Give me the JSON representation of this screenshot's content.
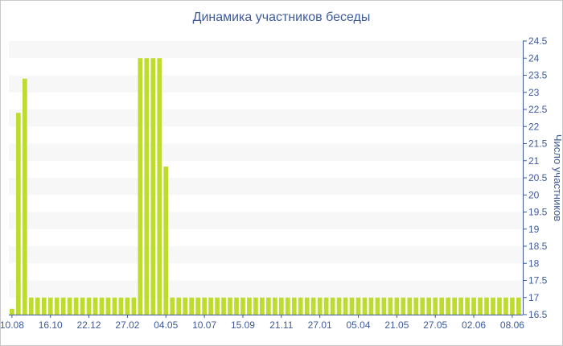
{
  "chart_data": {
    "type": "bar",
    "title": "Динамика участников беседы",
    "xlabel": "",
    "ylabel": "Число участников",
    "ylim": [
      16.5,
      24.5
    ],
    "y_ticks": [
      16.5,
      17,
      17.5,
      18,
      18.5,
      19,
      19.5,
      20,
      20.5,
      21,
      21.5,
      22,
      22.5,
      23,
      23.5,
      24,
      24.5
    ],
    "y_axis_position": "right",
    "grid": "horizontal bands",
    "x_tick_labels": [
      "10.08",
      "16.10",
      "22.12",
      "27.02",
      "04.05",
      "10.07",
      "15.09",
      "21.11",
      "27.01",
      "05.04",
      "21.05",
      "27.05",
      "02.06",
      "08.06"
    ],
    "x_tick_bar_index": [
      0,
      6,
      12,
      18,
      24,
      30,
      36,
      42,
      48,
      54,
      60,
      66,
      72,
      78
    ],
    "bar_color": "#bedc30",
    "values": [
      16.67,
      22.4,
      23.4,
      17,
      17,
      17,
      17,
      17,
      17,
      17,
      17,
      17,
      17,
      17,
      17,
      17,
      17,
      17,
      17,
      17,
      24,
      24,
      24,
      24,
      20.83,
      17,
      17,
      17,
      17,
      17,
      17,
      17,
      17,
      17,
      17,
      17,
      17,
      17,
      17,
      17,
      17,
      17,
      17,
      17,
      17,
      17,
      17,
      17,
      17,
      17,
      17,
      17,
      17,
      17,
      17,
      17,
      17,
      17,
      17,
      17,
      17,
      17,
      17,
      17,
      17,
      17,
      17,
      17,
      17,
      17,
      17,
      17,
      17,
      17,
      17,
      17,
      17,
      17,
      17,
      17
    ]
  }
}
